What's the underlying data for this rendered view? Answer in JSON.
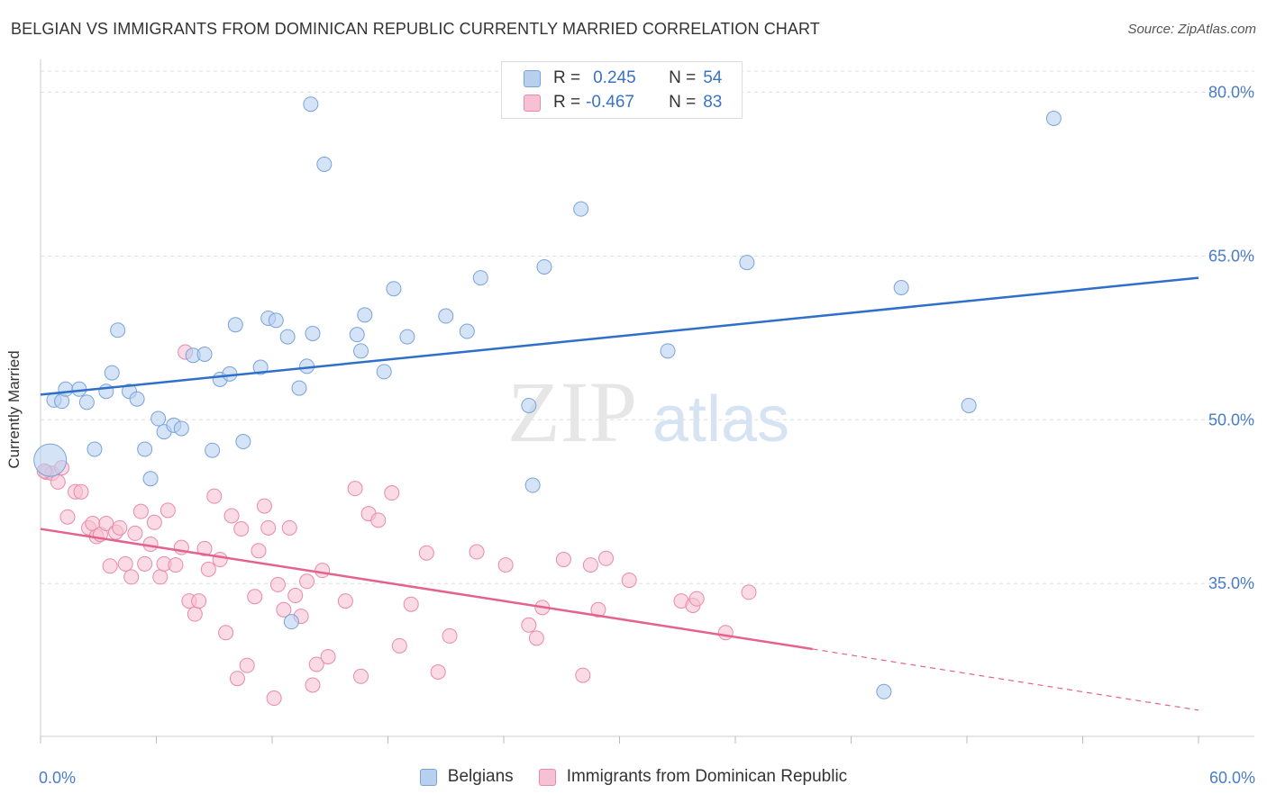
{
  "title": "BELGIAN VS IMMIGRANTS FROM DOMINICAN REPUBLIC CURRENTLY MARRIED CORRELATION CHART",
  "source": "Source: ZipAtlas.com",
  "watermark": {
    "zip": "ZIP",
    "atlas": "atlas"
  },
  "legend_top": {
    "r_label": "R =",
    "n_label": "N =",
    "rows": [
      {
        "r": "0.245",
        "n": "54"
      },
      {
        "r": "-0.467",
        "n": "83"
      }
    ]
  },
  "colors": {
    "blue_fill": "#b8d0f0",
    "blue_stroke": "#7aa3da",
    "blue_line": "#2e6fc9",
    "pink_fill": "#f6c1d2",
    "pink_stroke": "#e98aa9",
    "pink_line": "#e4628e",
    "tick_label": "#4a7cc7",
    "grid": "#dddddd"
  },
  "chart_data": {
    "type": "scatter",
    "title": "BELGIAN VS IMMIGRANTS FROM DOMINICAN REPUBLIC CURRENTLY MARRIED CORRELATION CHART",
    "xlabel": "",
    "ylabel": "Currently Married",
    "xlim": [
      0,
      60
    ],
    "ylim": [
      21,
      83
    ],
    "x_tick_labels": [
      "0.0%",
      "60.0%"
    ],
    "y_ticks": [
      35,
      50,
      65,
      80
    ],
    "y_tick_labels": [
      "35.0%",
      "50.0%",
      "65.0%",
      "80.0%"
    ],
    "grid": true,
    "legend_position": "bottom",
    "series": [
      {
        "name": "Belgians",
        "r": 0.245,
        "n": 54,
        "trend": {
          "x0": 0,
          "y0": 52.3,
          "x1": 60,
          "y1": 63.0
        },
        "points": [
          [
            0.7,
            51.8
          ],
          [
            1.1,
            51.7
          ],
          [
            1.3,
            52.8
          ],
          [
            2.0,
            52.8
          ],
          [
            2.4,
            51.6
          ],
          [
            2.8,
            47.3
          ],
          [
            3.4,
            52.6
          ],
          [
            3.7,
            54.3
          ],
          [
            4.0,
            58.2
          ],
          [
            4.6,
            52.6
          ],
          [
            5.0,
            51.9
          ],
          [
            5.4,
            47.3
          ],
          [
            5.7,
            44.6
          ],
          [
            6.1,
            50.1
          ],
          [
            6.4,
            48.9
          ],
          [
            6.9,
            49.5
          ],
          [
            7.3,
            49.2
          ],
          [
            7.9,
            55.9
          ],
          [
            8.5,
            56.0
          ],
          [
            8.9,
            47.2
          ],
          [
            9.3,
            53.7
          ],
          [
            9.8,
            54.2
          ],
          [
            10.1,
            58.7
          ],
          [
            10.5,
            48.0
          ],
          [
            11.4,
            54.8
          ],
          [
            11.8,
            59.3
          ],
          [
            12.2,
            59.1
          ],
          [
            12.8,
            57.6
          ],
          [
            13.0,
            31.5
          ],
          [
            13.4,
            52.9
          ],
          [
            13.8,
            54.9
          ],
          [
            14.0,
            78.9
          ],
          [
            14.1,
            57.9
          ],
          [
            14.7,
            73.4
          ],
          [
            16.4,
            57.8
          ],
          [
            16.6,
            56.3
          ],
          [
            16.8,
            59.6
          ],
          [
            17.8,
            54.4
          ],
          [
            18.3,
            62.0
          ],
          [
            19.0,
            57.6
          ],
          [
            21.0,
            59.5
          ],
          [
            22.1,
            58.1
          ],
          [
            22.8,
            63.0
          ],
          [
            25.3,
            51.3
          ],
          [
            25.5,
            44.0
          ],
          [
            26.1,
            64.0
          ],
          [
            28.0,
            69.3
          ],
          [
            32.5,
            56.3
          ],
          [
            36.6,
            64.4
          ],
          [
            43.7,
            25.1
          ],
          [
            44.6,
            62.1
          ],
          [
            48.1,
            51.3
          ],
          [
            52.5,
            77.6
          ],
          [
            0.5,
            46.3
          ]
        ]
      },
      {
        "name": "Immigrants from Dominican Republic",
        "r": -0.467,
        "n": 83,
        "trend": {
          "x0": 0,
          "y0": 40.0,
          "x1": 40,
          "y1": 29.0,
          "dash_x1": 60,
          "dash_y1": 23.4
        },
        "points": [
          [
            0.3,
            45.2
          ],
          [
            0.6,
            45.1
          ],
          [
            0.9,
            44.3
          ],
          [
            1.1,
            45.6
          ],
          [
            1.4,
            41.1
          ],
          [
            1.8,
            43.4
          ],
          [
            2.1,
            43.4
          ],
          [
            2.5,
            40.1
          ],
          [
            2.7,
            40.5
          ],
          [
            2.9,
            39.3
          ],
          [
            3.1,
            39.5
          ],
          [
            3.4,
            40.5
          ],
          [
            3.6,
            36.6
          ],
          [
            3.9,
            39.7
          ],
          [
            4.1,
            40.1
          ],
          [
            4.4,
            36.8
          ],
          [
            4.7,
            35.6
          ],
          [
            4.9,
            39.6
          ],
          [
            5.2,
            41.6
          ],
          [
            5.4,
            36.8
          ],
          [
            5.7,
            38.6
          ],
          [
            5.9,
            40.6
          ],
          [
            6.2,
            35.6
          ],
          [
            6.4,
            36.8
          ],
          [
            6.6,
            41.7
          ],
          [
            7.0,
            36.7
          ],
          [
            7.3,
            38.3
          ],
          [
            7.5,
            56.2
          ],
          [
            7.7,
            33.4
          ],
          [
            8.0,
            32.2
          ],
          [
            8.2,
            33.4
          ],
          [
            8.5,
            38.2
          ],
          [
            8.7,
            36.3
          ],
          [
            9.0,
            43.0
          ],
          [
            9.3,
            37.2
          ],
          [
            9.6,
            30.5
          ],
          [
            9.9,
            41.2
          ],
          [
            10.2,
            26.3
          ],
          [
            10.4,
            40.0
          ],
          [
            10.7,
            27.5
          ],
          [
            11.1,
            33.8
          ],
          [
            11.3,
            38.0
          ],
          [
            11.6,
            42.1
          ],
          [
            11.8,
            40.1
          ],
          [
            12.1,
            24.5
          ],
          [
            12.3,
            34.9
          ],
          [
            12.6,
            32.6
          ],
          [
            12.9,
            40.1
          ],
          [
            13.2,
            33.9
          ],
          [
            13.5,
            32.0
          ],
          [
            13.8,
            35.2
          ],
          [
            14.1,
            25.7
          ],
          [
            14.3,
            27.6
          ],
          [
            14.6,
            36.2
          ],
          [
            14.9,
            28.3
          ],
          [
            15.8,
            33.4
          ],
          [
            16.3,
            43.7
          ],
          [
            16.6,
            26.5
          ],
          [
            17.0,
            41.4
          ],
          [
            17.5,
            40.8
          ],
          [
            18.2,
            43.3
          ],
          [
            18.6,
            29.3
          ],
          [
            19.2,
            33.1
          ],
          [
            20.0,
            37.8
          ],
          [
            20.6,
            26.9
          ],
          [
            21.2,
            30.2
          ],
          [
            22.6,
            37.9
          ],
          [
            24.1,
            36.7
          ],
          [
            25.3,
            31.2
          ],
          [
            25.7,
            30.0
          ],
          [
            26.0,
            32.8
          ],
          [
            27.1,
            37.2
          ],
          [
            28.1,
            26.6
          ],
          [
            28.5,
            36.7
          ],
          [
            28.9,
            32.6
          ],
          [
            29.3,
            37.3
          ],
          [
            30.5,
            35.3
          ],
          [
            33.2,
            33.4
          ],
          [
            33.8,
            33.0
          ],
          [
            34.0,
            33.6
          ],
          [
            35.5,
            30.5
          ],
          [
            36.7,
            34.2
          ],
          [
            0.2,
            45.3
          ]
        ]
      }
    ]
  }
}
